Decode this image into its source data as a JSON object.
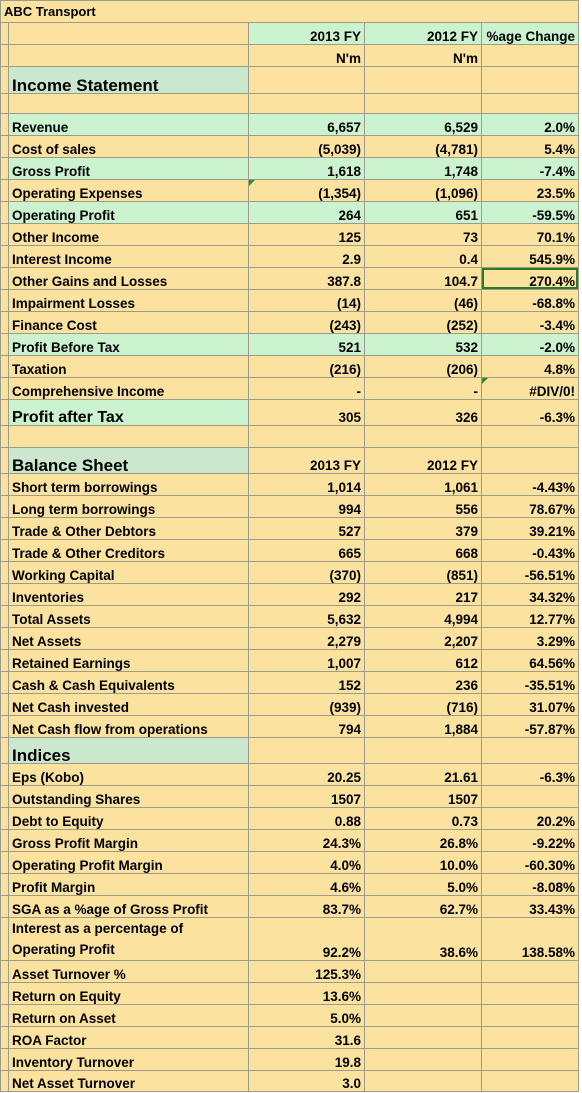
{
  "sheet": {
    "company": "ABC Transport",
    "headers": {
      "fy2013": "2013 FY",
      "fy2012": "2012 FY",
      "change": "%age Change",
      "unit": "N'm"
    }
  },
  "income": {
    "title": "Income Statement",
    "rows": [
      {
        "label": "Revenue",
        "v2013": "6,657",
        "v2012": "6,529",
        "chg": "2.0%"
      },
      {
        "label": "Cost of sales",
        "v2013": "(5,039)",
        "v2012": "(4,781)",
        "chg": "5.4%"
      },
      {
        "label": "Gross Profit",
        "v2013": "1,618",
        "v2012": "1,748",
        "chg": "-7.4%"
      },
      {
        "label": "Operating Expenses",
        "v2013": "(1,354)",
        "v2012": "(1,096)",
        "chg": "23.5%"
      },
      {
        "label": "Operating Profit",
        "v2013": "264",
        "v2012": "651",
        "chg": "-59.5%"
      },
      {
        "label": "Other Income",
        "v2013": "125",
        "v2012": "73",
        "chg": "70.1%"
      },
      {
        "label": "Interest Income",
        "v2013": "2.9",
        "v2012": "0.4",
        "chg": "545.9%"
      },
      {
        "label": "Other Gains and Losses",
        "v2013": "387.8",
        "v2012": "104.7",
        "chg": "270.4%"
      },
      {
        "label": "Impairment Losses",
        "v2013": "(14)",
        "v2012": "(46)",
        "chg": "-68.8%"
      },
      {
        "label": "Finance Cost",
        "v2013": "(243)",
        "v2012": "(252)",
        "chg": "-3.4%"
      },
      {
        "label": "Profit Before Tax",
        "v2013": "521",
        "v2012": "532",
        "chg": "-2.0%"
      },
      {
        "label": "Taxation",
        "v2013": "(216)",
        "v2012": "(206)",
        "chg": "4.8%"
      },
      {
        "label": "Comprehensive Income",
        "v2013": "-",
        "v2012": "-",
        "chg": "#DIV/0!"
      }
    ],
    "pat": {
      "label": "Profit after Tax",
      "v2013": "305",
      "v2012": "326",
      "chg": "-6.3%"
    }
  },
  "balance": {
    "title": "Balance Sheet",
    "h2013": "2013 FY",
    "h2012": "2012 FY",
    "rows": [
      {
        "label": "Short term borrowings",
        "v2013": "1,014",
        "v2012": "1,061",
        "chg": "-4.43%"
      },
      {
        "label": "Long term borrowings",
        "v2013": "994",
        "v2012": "556",
        "chg": "78.67%"
      },
      {
        "label": "Trade & Other Debtors",
        "v2013": "527",
        "v2012": "379",
        "chg": "39.21%"
      },
      {
        "label": "Trade & Other Creditors",
        "v2013": "665",
        "v2012": "668",
        "chg": "-0.43%"
      },
      {
        "label": "Working Capital",
        "v2013": "(370)",
        "v2012": "(851)",
        "chg": "-56.51%"
      },
      {
        "label": "Inventories",
        "v2013": "292",
        "v2012": "217",
        "chg": "34.32%"
      },
      {
        "label": "Total Assets",
        "v2013": "5,632",
        "v2012": "4,994",
        "chg": "12.77%"
      },
      {
        "label": "Net Assets",
        "v2013": "2,279",
        "v2012": "2,207",
        "chg": "3.29%"
      },
      {
        "label": "Retained Earnings",
        "v2013": "1,007",
        "v2012": "612",
        "chg": "64.56%"
      },
      {
        "label": "Cash & Cash Equivalents",
        "v2013": "152",
        "v2012": "236",
        "chg": "-35.51%"
      },
      {
        "label": "Net Cash invested",
        "v2013": "(939)",
        "v2012": "(716)",
        "chg": "31.07%"
      },
      {
        "label": "Net Cash flow from operations",
        "v2013": "794",
        "v2012": "1,884",
        "chg": "-57.87%"
      }
    ]
  },
  "indices": {
    "title": "Indices",
    "rows": [
      {
        "label": "Eps (Kobo)",
        "v2013": "20.25",
        "v2012": "21.61",
        "chg": "-6.3%"
      },
      {
        "label": "Outstanding Shares",
        "v2013": "1507",
        "v2012": "1507",
        "chg": ""
      },
      {
        "label": "Debt to Equity",
        "v2013": "0.88",
        "v2012": "0.73",
        "chg": "20.2%"
      },
      {
        "label": "Gross Profit Margin",
        "v2013": "24.3%",
        "v2012": "26.8%",
        "chg": "-9.22%"
      },
      {
        "label": "Operating Profit Margin",
        "v2013": "4.0%",
        "v2012": "10.0%",
        "chg": "-60.30%"
      },
      {
        "label": "Profit Margin",
        "v2013": "4.6%",
        "v2012": "5.0%",
        "chg": "-8.08%"
      },
      {
        "label": "SGA as a %age of Gross Profit",
        "v2013": "83.7%",
        "v2012": "62.7%",
        "chg": "33.43%"
      }
    ],
    "interest": {
      "label_line1": "Interest as a percentage of",
      "label_line2": "Operating Profit",
      "v2013": "92.2%",
      "v2012": "38.6%",
      "chg": "138.58%"
    },
    "rows2": [
      {
        "label": "Asset Turnover %",
        "v2013": "125.3%"
      },
      {
        "label": "Return on Equity",
        "v2013": "13.6%"
      },
      {
        "label": "Return on Asset",
        "v2013": "5.0%"
      },
      {
        "label": "ROA Factor",
        "v2013": "31.6"
      },
      {
        "label": "Inventory Turnover",
        "v2013": "19.8"
      },
      {
        "label": "Net Asset Turnover",
        "v2013": "3.0"
      }
    ]
  }
}
